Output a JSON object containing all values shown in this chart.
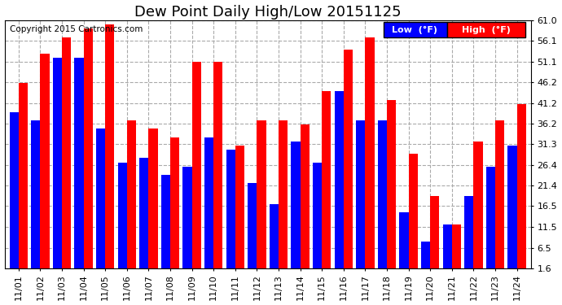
{
  "title": "Dew Point Daily High/Low 20151125",
  "copyright": "Copyright 2015 Cartronics.com",
  "legend_low": "Low  (°F)",
  "legend_high": "High  (°F)",
  "dates": [
    "11/01",
    "11/02",
    "11/03",
    "11/04",
    "11/05",
    "11/06",
    "11/07",
    "11/08",
    "11/09",
    "11/10",
    "11/11",
    "11/12",
    "11/13",
    "11/14",
    "11/15",
    "11/16",
    "11/17",
    "11/18",
    "11/19",
    "11/20",
    "11/21",
    "11/22",
    "11/23",
    "11/24"
  ],
  "low_values": [
    39.0,
    37.0,
    52.0,
    52.0,
    35.0,
    27.0,
    28.0,
    24.0,
    26.0,
    33.0,
    30.0,
    22.0,
    17.0,
    32.0,
    27.0,
    44.0,
    37.0,
    37.0,
    15.0,
    8.0,
    12.0,
    19.0,
    26.0,
    31.0
  ],
  "high_values": [
    46.0,
    53.0,
    57.0,
    59.0,
    60.0,
    37.0,
    35.0,
    33.0,
    51.0,
    51.0,
    31.0,
    37.0,
    37.0,
    36.0,
    44.0,
    54.0,
    57.0,
    42.0,
    29.0,
    19.0,
    12.0,
    32.0,
    37.0,
    41.0
  ],
  "bar_color_low": "#0000ff",
  "bar_color_high": "#ff0000",
  "bg_color": "#ffffff",
  "plot_bg_color": "#ffffff",
  "grid_color": "#aaaaaa",
  "ylim_min": 1.6,
  "ylim_max": 61.0,
  "yticks": [
    1.6,
    6.5,
    11.5,
    16.5,
    21.4,
    26.4,
    31.3,
    36.2,
    41.2,
    46.2,
    51.1,
    56.1,
    61.0
  ],
  "title_fontsize": 13,
  "tick_fontsize": 8,
  "copyright_fontsize": 7.5,
  "legend_fontsize": 8
}
